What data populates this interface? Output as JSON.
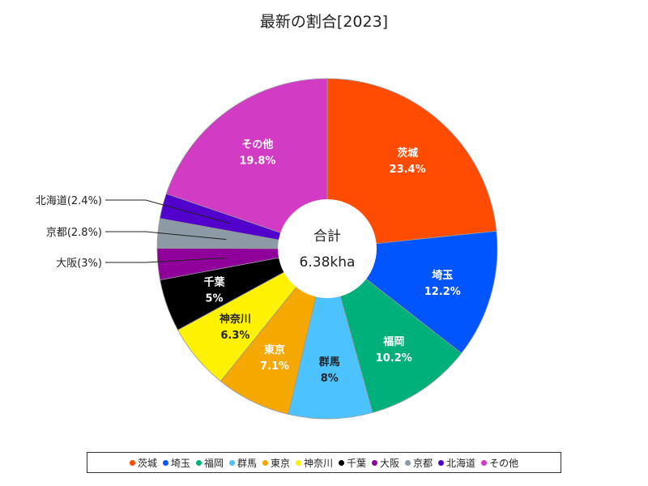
{
  "chart_data": {
    "type": "pie",
    "title": "最新の割合[2023]",
    "center_label": "合計",
    "center_value": "6.38kha",
    "slices": [
      {
        "name": "茨城",
        "value": 23.4,
        "label": "23.4%",
        "color": "#ff4c00"
      },
      {
        "name": "埼玉",
        "value": 12.2,
        "label": "12.2%",
        "color": "#0055ff"
      },
      {
        "name": "福岡",
        "value": 10.2,
        "label": "10.2%",
        "color": "#00b07a"
      },
      {
        "name": "群馬",
        "value": 8,
        "label": "8%",
        "color": "#4cc3ff"
      },
      {
        "name": "東京",
        "value": 7.1,
        "label": "7.1%",
        "color": "#f5a800"
      },
      {
        "name": "神奈川",
        "value": 6.3,
        "label": "6.3%",
        "color": "#fff200"
      },
      {
        "name": "千葉",
        "value": 5,
        "label": "5%",
        "color": "#000000"
      },
      {
        "name": "大阪",
        "value": 3,
        "label": "大阪(3%)",
        "color": "#8e0099"
      },
      {
        "name": "京都",
        "value": 2.8,
        "label": "京都(2.8%)",
        "color": "#8c9aa6"
      },
      {
        "name": "北海道",
        "value": 2.4,
        "label": "北海道(2.4%)",
        "color": "#5200cc"
      },
      {
        "name": "その他",
        "value": 19.8,
        "label": "19.8%",
        "color": "#d23bc4"
      }
    ],
    "legend_position": "bottom"
  }
}
